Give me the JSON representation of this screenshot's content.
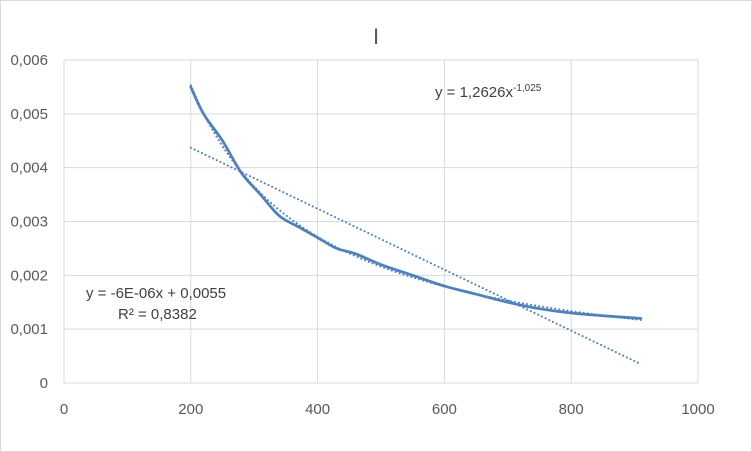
{
  "chart_data": {
    "type": "line",
    "title": "I",
    "xlabel": "",
    "ylabel": "",
    "xlim": [
      0,
      1000
    ],
    "ylim": [
      0,
      0.006
    ],
    "x_ticks": [
      0,
      200,
      400,
      600,
      800,
      1000
    ],
    "x_tick_labels": [
      "0",
      "200",
      "400",
      "600",
      "800",
      "1000"
    ],
    "y_ticks": [
      0,
      0.001,
      0.002,
      0.003,
      0.004,
      0.005,
      0.006
    ],
    "y_tick_labels": [
      "0",
      "0,001",
      "0,002",
      "0,003",
      "0,004",
      "0,005",
      "0,006"
    ],
    "grid": true,
    "legend": "none",
    "series": [
      {
        "style": "solid",
        "color": "#4f81bd",
        "x": [
          200,
          220,
          250,
          280,
          310,
          340,
          370,
          400,
          430,
          460,
          500,
          550,
          600,
          650,
          700,
          750,
          800,
          850,
          910
        ],
        "y": [
          0.0055,
          0.005,
          0.0045,
          0.0039,
          0.0035,
          0.0031,
          0.0029,
          0.0027,
          0.0025,
          0.0024,
          0.0022,
          0.002,
          0.0018,
          0.00165,
          0.0015,
          0.00138,
          0.0013,
          0.00125,
          0.0012
        ]
      },
      {
        "style": "dotted",
        "color": "#4f81bd",
        "kind": "power-trendline",
        "coefficient": 1.2626,
        "exponent": -1.025,
        "x_range": [
          200,
          910
        ]
      },
      {
        "style": "dotted",
        "color": "#4f81bd",
        "kind": "linear-trendline",
        "x": [
          200,
          910
        ],
        "y": [
          0.00437,
          0.00035
        ]
      }
    ],
    "annotations": {
      "power_eq_prefix": "y = 1,2626x",
      "power_eq_exponent": "-1,025",
      "linear_eq": "y = -6E-06x + 0,0055",
      "r_squared": "R² = 0,8382"
    }
  }
}
